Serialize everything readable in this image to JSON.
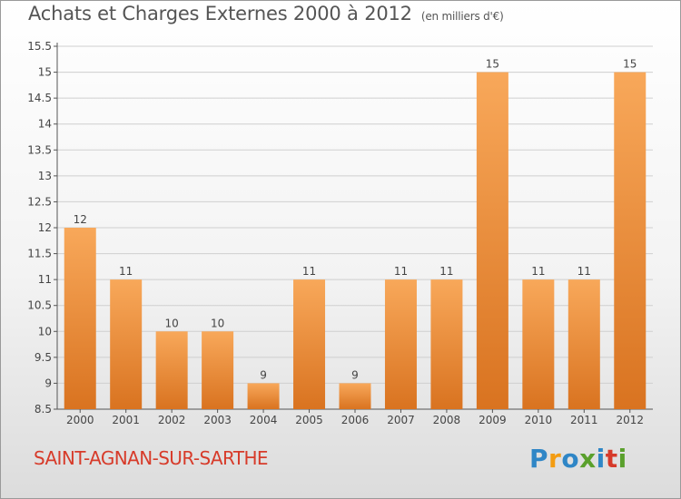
{
  "title": "Achats et Charges Externes 2000 à 2012",
  "unit": "(en milliers d'€)",
  "commune": "SAINT-AGNAN-SUR-SARTHE",
  "logo": {
    "text": "Proxiti",
    "colors": [
      "#2f86c6",
      "#f39c12",
      "#2f86c6",
      "#5aa02c",
      "#2f86c6",
      "#d63a2a",
      "#5aa02c"
    ]
  },
  "colors": {
    "bar_light": "#f8a85a",
    "bar_dark": "#d97320",
    "grid": "#cfcfcf",
    "commune": "#d73b2a"
  },
  "chart_data": {
    "type": "bar",
    "categories": [
      "2000",
      "2001",
      "2002",
      "2003",
      "2004",
      "2005",
      "2006",
      "2007",
      "2008",
      "2009",
      "2010",
      "2011",
      "2012"
    ],
    "values": [
      12,
      11,
      10,
      10,
      9,
      11,
      9,
      11,
      11,
      15,
      11,
      11,
      15
    ],
    "ylim": [
      8.5,
      15.5
    ],
    "yticks": [
      "8.5",
      "9",
      "9.5",
      "10",
      "10.5",
      "11",
      "11.5",
      "12",
      "12.5",
      "13",
      "13.5",
      "14",
      "14.5",
      "15",
      "15.5"
    ],
    "grid": true
  }
}
